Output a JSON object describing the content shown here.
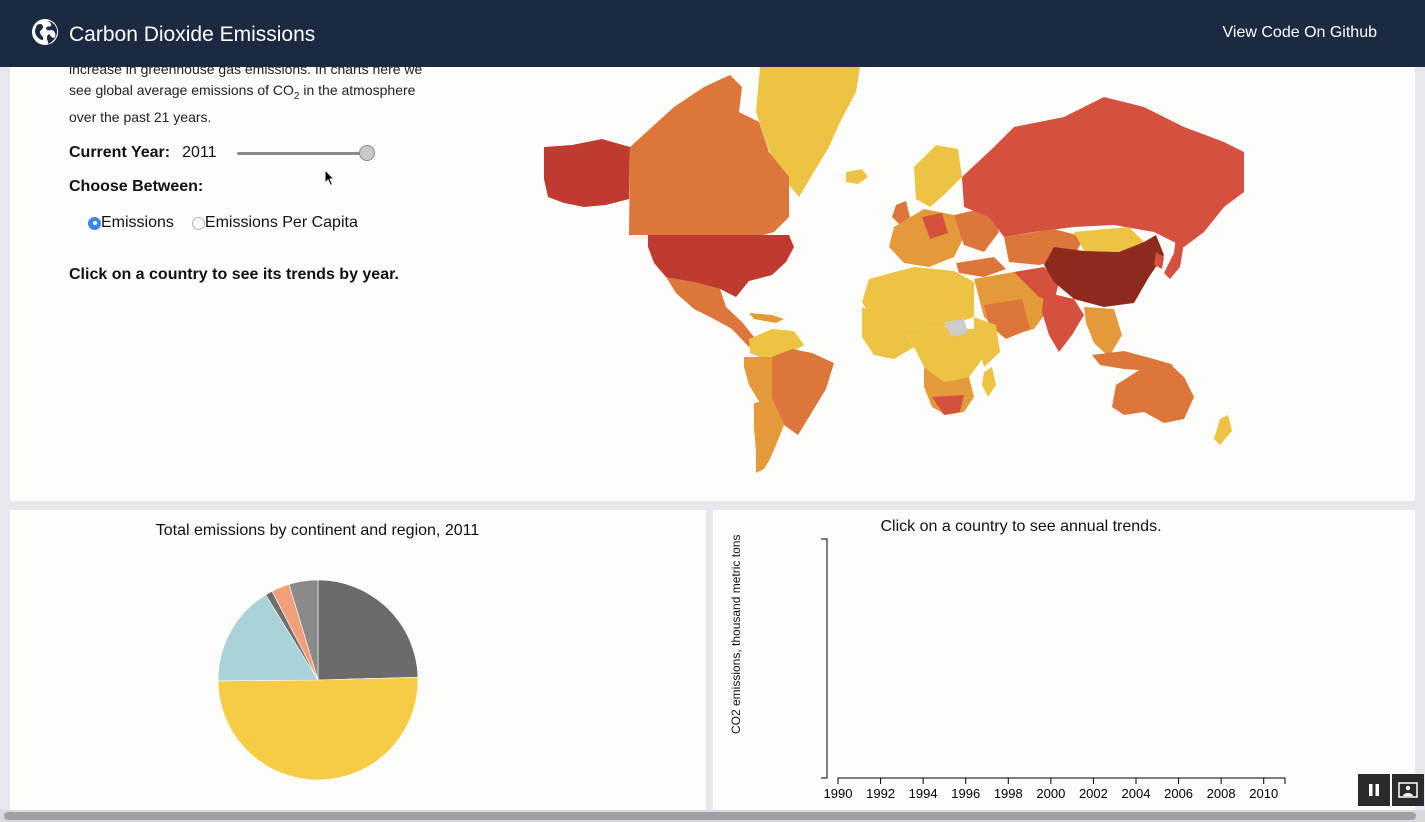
{
  "navbar": {
    "title": "Carbon Dioxide Emissions",
    "github_link": "View Code On Github",
    "icon": "globe-icon"
  },
  "sidebar": {
    "intro_line1": "increase in greenhouse gas emissions. In charts here we",
    "intro_line2_pre": "see global average emissions of CO",
    "intro_line2_sub": "2",
    "intro_line2_post": " in the atmosphere",
    "intro_line3": "over the past 21 years.",
    "year_label": "Current Year:",
    "year_value": "2011",
    "year_slider": {
      "min": 1990,
      "max": 2011,
      "value": 2011
    },
    "choose_label": "Choose Between:",
    "options": [
      "Emissions",
      "Emissions Per Capita"
    ],
    "selected_option": "Emissions",
    "click_note": "Click on a country to see its trends by year."
  },
  "colors": {
    "nav_bg": "#1b2a41",
    "radio_selected": "#3b88e8",
    "map_scale": [
      "#edc343",
      "#e59a3a",
      "#dc763a",
      "#d5503e",
      "#bf3b30",
      "#8e2a1c"
    ],
    "map_nodata": "#cccccc"
  },
  "pie": {
    "title": "Total emissions by continent and region, 2011"
  },
  "trend": {
    "title": "Click on a country to see annual trends.",
    "ylabel": "CO2 emissions, thousand metric tons"
  },
  "chart_data": [
    {
      "type": "pie",
      "title": "Total emissions by continent and region, 2011",
      "slices": [
        {
          "group": "gray",
          "color": "#6b6b69",
          "value": 21
        },
        {
          "group": "yellow",
          "color": "#f6cc47",
          "value": 43
        },
        {
          "group": "light-blue",
          "color": "#a9d3d9",
          "value": 14
        },
        {
          "group": "gray-dark",
          "color": "#6f6f6f",
          "value": 1
        },
        {
          "group": "orange",
          "color": "#f2a07b",
          "value": 2.5
        },
        {
          "group": "gray-small",
          "color": "#8a8a8a",
          "value": 4
        }
      ]
    },
    {
      "type": "line",
      "title": "Click on a country to see annual trends.",
      "ylabel": "CO2 emissions, thousand metric tons",
      "x_ticks": [
        "1990",
        "1992",
        "1994",
        "1996",
        "1998",
        "2000",
        "2002",
        "2004",
        "2006",
        "2008",
        "2010"
      ],
      "xlim": [
        1990,
        2011
      ],
      "series": []
    }
  ],
  "controls": {
    "pause_icon": "pause-icon",
    "screen_icon": "picture-in-picture-icon"
  }
}
